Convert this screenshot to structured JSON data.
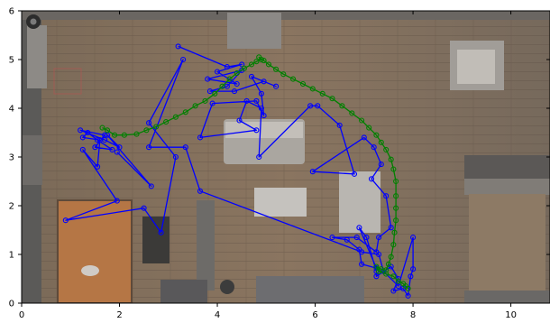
{
  "chart_data": {
    "type": "line",
    "title": "",
    "xlabel": "",
    "ylabel": "",
    "xlim": [
      0,
      10.8
    ],
    "ylim": [
      0,
      6
    ],
    "grid": false,
    "background": "top-down photo of an apartment floor plan (floor image behind the plot)",
    "x_ticks": [
      0,
      2,
      4,
      6,
      8,
      10
    ],
    "y_ticks": [
      0,
      1,
      2,
      3,
      4,
      5,
      6
    ],
    "series": [
      {
        "color": "#0000ff",
        "marker": "open-circle",
        "points": [
          [
            3.2,
            5.27
          ],
          [
            4.2,
            4.85
          ],
          [
            4.5,
            4.9
          ],
          [
            4.0,
            4.75
          ],
          [
            4.4,
            4.5
          ],
          [
            3.8,
            4.6
          ],
          [
            4.5,
            4.78
          ],
          [
            4.2,
            4.45
          ],
          [
            3.85,
            4.35
          ],
          [
            4.35,
            4.35
          ],
          [
            4.95,
            4.55
          ],
          [
            5.2,
            4.45
          ],
          [
            4.7,
            4.65
          ],
          [
            4.9,
            4.3
          ],
          [
            4.95,
            3.85
          ],
          [
            4.8,
            4.15
          ],
          [
            3.9,
            4.1
          ],
          [
            3.65,
            3.4
          ],
          [
            4.8,
            3.55
          ],
          [
            4.45,
            3.75
          ],
          [
            4.6,
            4.15
          ],
          [
            4.9,
            4.0
          ],
          [
            4.85,
            3.0
          ],
          [
            5.9,
            4.05
          ],
          [
            6.05,
            4.05
          ],
          [
            6.5,
            3.65
          ],
          [
            6.8,
            2.65
          ],
          [
            5.95,
            2.7
          ],
          [
            7.0,
            3.4
          ],
          [
            7.2,
            3.2
          ],
          [
            7.35,
            2.85
          ],
          [
            7.15,
            2.55
          ],
          [
            7.45,
            2.2
          ],
          [
            7.55,
            1.55
          ],
          [
            7.3,
            1.35
          ],
          [
            7.25,
            1.05
          ],
          [
            6.85,
            1.35
          ],
          [
            6.35,
            1.35
          ],
          [
            6.65,
            1.3
          ],
          [
            6.9,
            1.1
          ],
          [
            6.95,
            0.8
          ],
          [
            7.25,
            0.72
          ],
          [
            6.9,
            1.55
          ],
          [
            7.05,
            1.35
          ],
          [
            7.25,
            0.65
          ],
          [
            7.25,
            0.55
          ],
          [
            7.55,
            0.75
          ],
          [
            7.7,
            0.5
          ],
          [
            7.6,
            0.25
          ],
          [
            7.8,
            0.3
          ],
          [
            7.9,
            0.15
          ],
          [
            7.95,
            0.55
          ],
          [
            8.0,
            0.7
          ],
          [
            8.0,
            1.35
          ],
          [
            7.7,
            0.35
          ],
          [
            7.4,
            0.65
          ],
          [
            7.3,
            1.0
          ],
          [
            6.95,
            1.05
          ],
          [
            3.65,
            2.3
          ],
          [
            3.35,
            3.2
          ],
          [
            2.6,
            3.2
          ],
          [
            3.3,
            5.0
          ],
          [
            2.6,
            3.7
          ],
          [
            3.15,
            3.0
          ],
          [
            2.85,
            1.45
          ],
          [
            2.5,
            1.95
          ],
          [
            0.9,
            1.7
          ],
          [
            1.95,
            2.1
          ],
          [
            1.25,
            3.15
          ],
          [
            1.55,
            2.8
          ],
          [
            1.6,
            3.35
          ],
          [
            1.25,
            3.4
          ],
          [
            1.35,
            3.5
          ],
          [
            1.55,
            3.35
          ],
          [
            1.85,
            3.15
          ],
          [
            1.5,
            3.2
          ],
          [
            1.7,
            3.45
          ],
          [
            1.2,
            3.55
          ],
          [
            1.7,
            3.35
          ],
          [
            2.0,
            3.2
          ],
          [
            1.75,
            3.45
          ],
          [
            2.65,
            2.4
          ],
          [
            1.95,
            3.1
          ]
        ]
      },
      {
        "color": "#008000",
        "marker": "open-circle",
        "points": [
          [
            1.65,
            3.6
          ],
          [
            1.75,
            3.55
          ],
          [
            1.9,
            3.45
          ],
          [
            2.1,
            3.45
          ],
          [
            2.35,
            3.47
          ],
          [
            2.55,
            3.55
          ],
          [
            2.75,
            3.62
          ],
          [
            2.95,
            3.72
          ],
          [
            3.15,
            3.82
          ],
          [
            3.35,
            3.92
          ],
          [
            3.55,
            4.05
          ],
          [
            3.75,
            4.15
          ],
          [
            3.95,
            4.3
          ],
          [
            4.1,
            4.45
          ],
          [
            4.25,
            4.6
          ],
          [
            4.4,
            4.72
          ],
          [
            4.55,
            4.82
          ],
          [
            4.7,
            4.9
          ],
          [
            4.8,
            4.96
          ],
          [
            4.9,
            5.0
          ],
          [
            4.85,
            5.05
          ],
          [
            4.95,
            4.98
          ],
          [
            5.05,
            4.9
          ],
          [
            5.2,
            4.8
          ],
          [
            5.35,
            4.7
          ],
          [
            5.55,
            4.6
          ],
          [
            5.75,
            4.5
          ],
          [
            5.95,
            4.4
          ],
          [
            6.15,
            4.3
          ],
          [
            6.35,
            4.2
          ],
          [
            6.55,
            4.05
          ],
          [
            6.75,
            3.9
          ],
          [
            6.95,
            3.75
          ],
          [
            7.1,
            3.6
          ],
          [
            7.25,
            3.45
          ],
          [
            7.35,
            3.3
          ],
          [
            7.45,
            3.15
          ],
          [
            7.55,
            2.95
          ],
          [
            7.6,
            2.75
          ],
          [
            7.65,
            2.5
          ],
          [
            7.65,
            2.2
          ],
          [
            7.65,
            1.95
          ],
          [
            7.65,
            1.7
          ],
          [
            7.62,
            1.45
          ],
          [
            7.6,
            1.2
          ],
          [
            7.55,
            0.95
          ],
          [
            7.5,
            0.8
          ],
          [
            7.45,
            0.68
          ],
          [
            7.35,
            0.7
          ],
          [
            7.25,
            0.75
          ],
          [
            7.3,
            0.65
          ],
          [
            7.45,
            0.6
          ],
          [
            7.6,
            0.55
          ],
          [
            7.7,
            0.45
          ],
          [
            7.8,
            0.4
          ],
          [
            7.85,
            0.35
          ],
          [
            7.9,
            0.3
          ]
        ]
      }
    ]
  }
}
